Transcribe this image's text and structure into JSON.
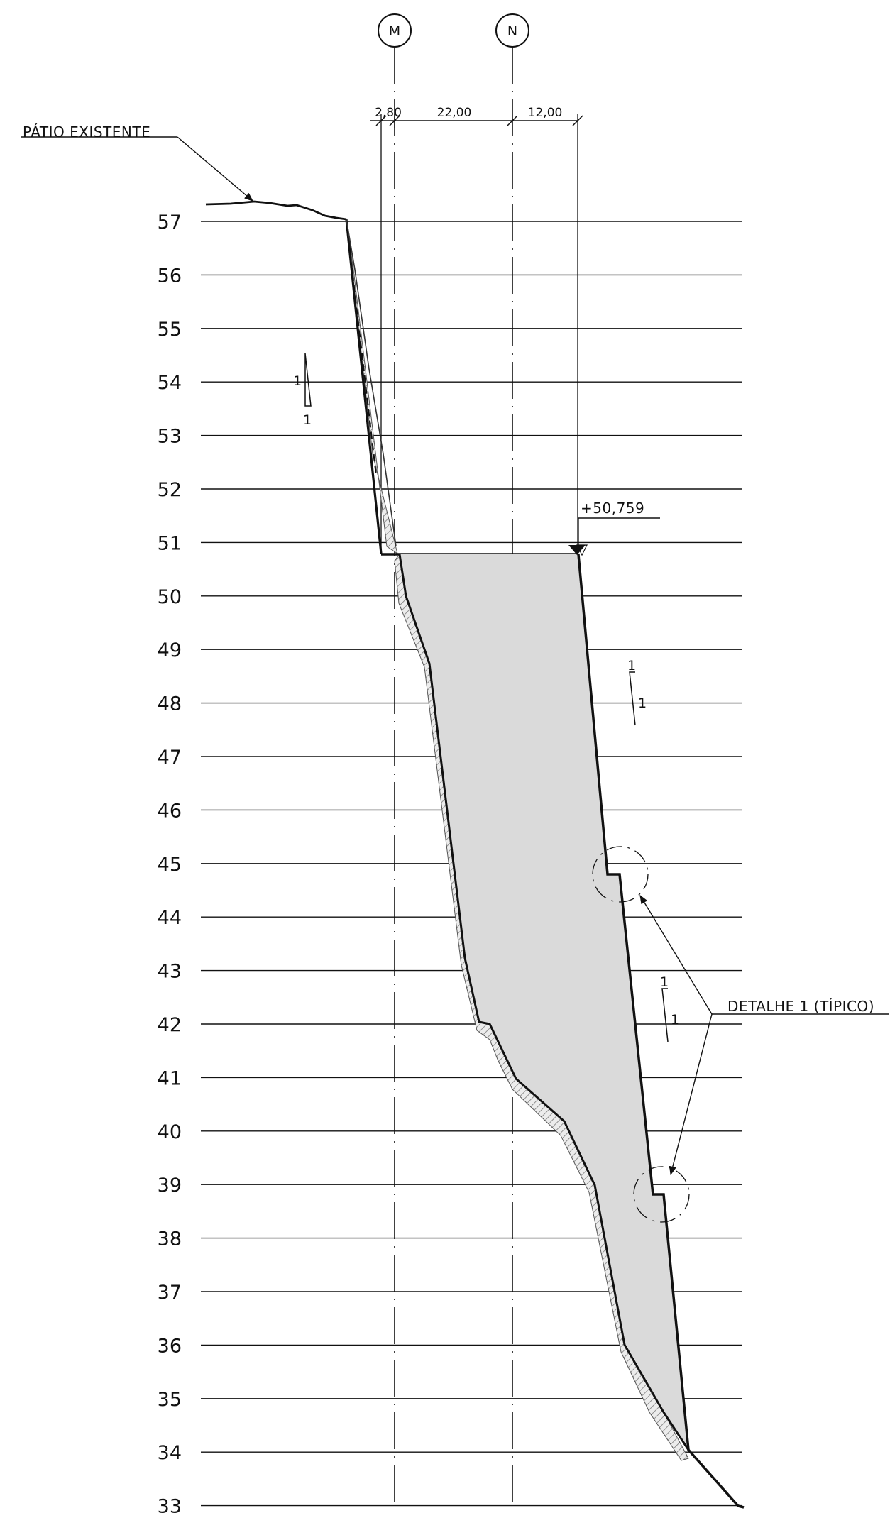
{
  "section": {
    "axes": [
      {
        "id": "M",
        "label": "M"
      },
      {
        "id": "N",
        "label": "N"
      }
    ],
    "dimensions": {
      "d1": "2,80",
      "d2": "22,00",
      "d3": "12,00"
    },
    "labels": {
      "patio": "PÁTIO EXISTENTE",
      "elevation": "+50,759",
      "detail": "DETALHE 1 (TÍPICO)"
    },
    "slopes": [
      {
        "rise": "1",
        "run": "1"
      },
      {
        "rise": "1",
        "run": "1"
      },
      {
        "rise": "1",
        "run": "1"
      }
    ],
    "levels": [
      "57",
      "56",
      "55",
      "54",
      "53",
      "52",
      "51",
      "50",
      "49",
      "48",
      "47",
      "46",
      "45",
      "44",
      "43",
      "42",
      "41",
      "40",
      "39",
      "38",
      "37",
      "36",
      "35",
      "34",
      "33"
    ],
    "colors": {
      "line": "#111111",
      "fill": "#dadada",
      "hatch": "#8a8a8a"
    }
  }
}
